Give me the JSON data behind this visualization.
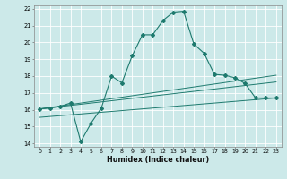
{
  "xlabel": "Humidex (Indice chaleur)",
  "xlim": [
    -0.5,
    23.5
  ],
  "ylim": [
    13.8,
    22.2
  ],
  "xticks": [
    0,
    1,
    2,
    3,
    4,
    5,
    6,
    7,
    8,
    9,
    10,
    11,
    12,
    13,
    14,
    15,
    16,
    17,
    18,
    19,
    20,
    21,
    22,
    23
  ],
  "yticks": [
    14,
    15,
    16,
    17,
    18,
    19,
    20,
    21,
    22
  ],
  "bg_color": "#cce9e9",
  "grid_color": "#b0d8d8",
  "line_color": "#1e7a6e",
  "main_curve_x": [
    0,
    1,
    2,
    3,
    4,
    5,
    6,
    7,
    8,
    9,
    10,
    11,
    12,
    13,
    14,
    15,
    16,
    17,
    18,
    19,
    20,
    21,
    22,
    23
  ],
  "main_curve_y": [
    16.05,
    16.1,
    16.2,
    16.4,
    14.1,
    15.2,
    16.1,
    18.0,
    17.6,
    19.2,
    20.45,
    20.45,
    21.3,
    21.8,
    21.85,
    19.9,
    19.35,
    18.1,
    18.05,
    17.9,
    17.55,
    16.7,
    16.7,
    16.7
  ],
  "line1_x": [
    0,
    23
  ],
  "line1_y": [
    16.05,
    17.65
  ],
  "line2_x": [
    0,
    23
  ],
  "line2_y": [
    16.05,
    18.05
  ],
  "line3_x": [
    0,
    23
  ],
  "line3_y": [
    15.55,
    16.7
  ]
}
